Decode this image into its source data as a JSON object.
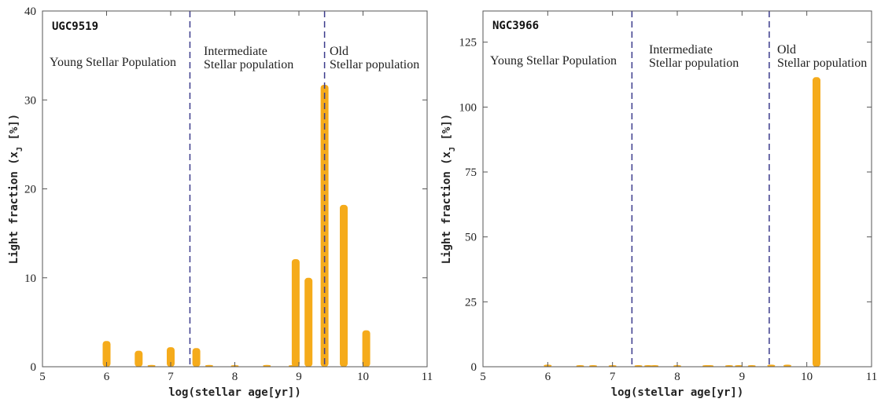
{
  "chart_data": [
    {
      "type": "bar",
      "galaxy_label": "UGC9519",
      "xlabel": "log(stellar age[yr])",
      "ylabel": "Light fraction (x_J [%])",
      "xlim": [
        5,
        11
      ],
      "ylim": [
        0,
        40
      ],
      "xticks": [
        5,
        6,
        7,
        8,
        9,
        10,
        11
      ],
      "yticks": [
        0,
        10,
        20,
        30,
        40
      ],
      "grid": false,
      "dividers": [
        7.3,
        9.4
      ],
      "regions": [
        {
          "lines": [
            "Young Stellar Population"
          ]
        },
        {
          "lines": [
            "Intermediate",
            "Stellar population"
          ]
        },
        {
          "lines": [
            "Old",
            "Stellar population"
          ]
        }
      ],
      "color": "#f5ab1b",
      "x": [
        6.0,
        6.5,
        6.7,
        7.0,
        7.4,
        7.6,
        8.0,
        8.5,
        8.9,
        8.95,
        9.15,
        9.4,
        9.7,
        10.05
      ],
      "y": [
        2.9,
        1.8,
        0.2,
        2.2,
        2.1,
        0.2,
        0.1,
        0.2,
        0.1,
        12.1,
        10.0,
        31.7,
        18.2,
        4.1
      ]
    },
    {
      "type": "bar",
      "galaxy_label": "NGC3966",
      "xlabel": "log(stellar age[yr])",
      "ylabel": "Light fraction (x_J [%])",
      "xlim": [
        5,
        11
      ],
      "ylim": [
        0,
        137
      ],
      "xticks": [
        5,
        6,
        7,
        8,
        9,
        10,
        11
      ],
      "yticks": [
        0,
        25,
        50,
        75,
        100,
        125
      ],
      "grid": false,
      "dividers": [
        7.3,
        9.42
      ],
      "regions": [
        {
          "lines": [
            "Young Stellar Population"
          ]
        },
        {
          "lines": [
            "Intermediate",
            "Stellar population"
          ]
        },
        {
          "lines": [
            "Old",
            "Stellar population"
          ]
        }
      ],
      "color": "#f5ab1b",
      "x": [
        6.0,
        6.5,
        6.7,
        7.0,
        7.4,
        7.55,
        7.65,
        8.0,
        8.45,
        8.5,
        8.8,
        8.95,
        9.15,
        9.45,
        9.7,
        10.15
      ],
      "y": [
        0.8,
        0.6,
        0.6,
        0.6,
        0.6,
        0.5,
        0.5,
        0.5,
        0.6,
        0.6,
        0.6,
        0.6,
        0.6,
        0.8,
        0.8,
        111.5
      ]
    }
  ]
}
